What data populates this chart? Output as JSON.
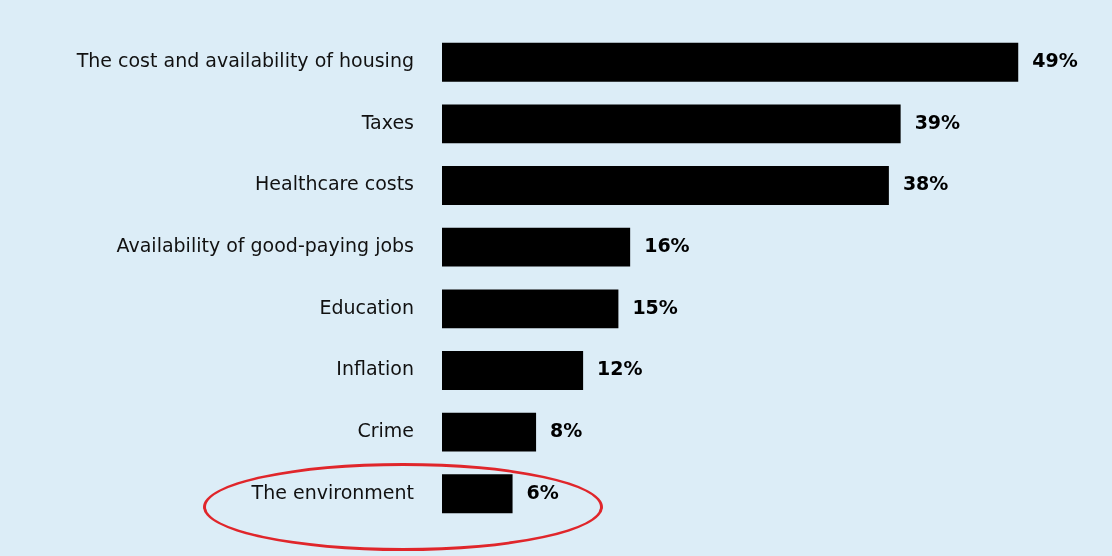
{
  "chart_data": {
    "type": "bar",
    "orientation": "horizontal",
    "categories": [
      "The cost and availability of housing",
      "Taxes",
      "Healthcare costs",
      "Availability of good-paying jobs",
      "Education",
      "Inflation",
      "Crime",
      "The environment"
    ],
    "values": [
      49,
      39,
      38,
      16,
      15,
      12,
      8,
      6
    ],
    "value_labels": [
      "49%",
      "39%",
      "38%",
      "16%",
      "15%",
      "12%",
      "8%",
      "6%"
    ],
    "color": "#000000",
    "grid": false
  }
}
